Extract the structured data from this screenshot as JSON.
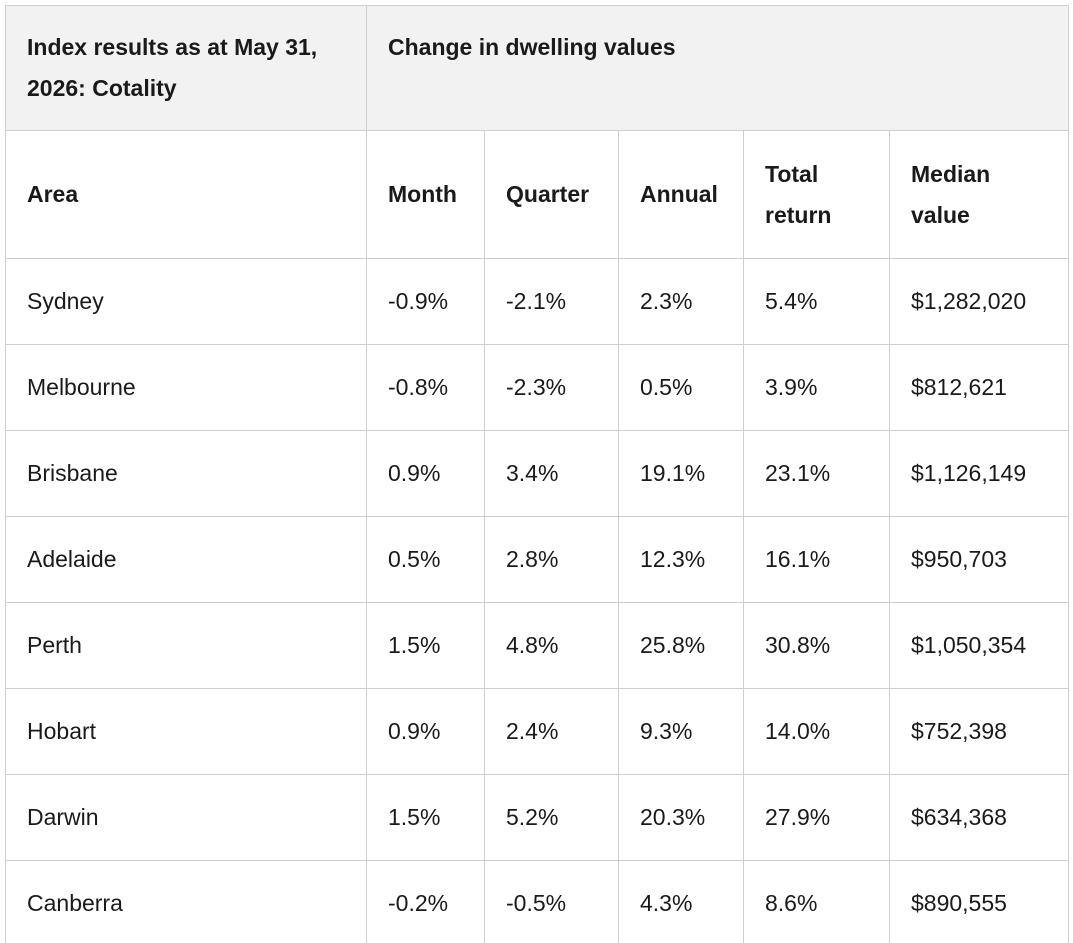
{
  "table": {
    "header": {
      "left": "Index results as at May 31, 2026: Cotality",
      "right": "Change in dwelling values"
    },
    "columns": [
      "Area",
      "Month",
      "Quarter",
      "Annual",
      "Total return",
      "Median value"
    ],
    "rows": [
      [
        "Sydney",
        "-0.9%",
        "-2.1%",
        "2.3%",
        "5.4%",
        "$1,282,020"
      ],
      [
        "Melbourne",
        "-0.8%",
        "-2.3%",
        "0.5%",
        "3.9%",
        "$812,621"
      ],
      [
        "Brisbane",
        "0.9%",
        "3.4%",
        "19.1%",
        "23.1%",
        "$1,126,149"
      ],
      [
        "Adelaide",
        "0.5%",
        "2.8%",
        "12.3%",
        "16.1%",
        "$950,703"
      ],
      [
        "Perth",
        "1.5%",
        "4.8%",
        "25.8%",
        "30.8%",
        "$1,050,354"
      ],
      [
        "Hobart",
        "0.9%",
        "2.4%",
        "9.3%",
        "14.0%",
        "$752,398"
      ],
      [
        "Darwin",
        "1.5%",
        "5.2%",
        "20.3%",
        "27.9%",
        "$634,368"
      ],
      [
        "Canberra",
        "-0.2%",
        "-0.5%",
        "4.3%",
        "8.6%",
        "$890,555"
      ]
    ]
  }
}
